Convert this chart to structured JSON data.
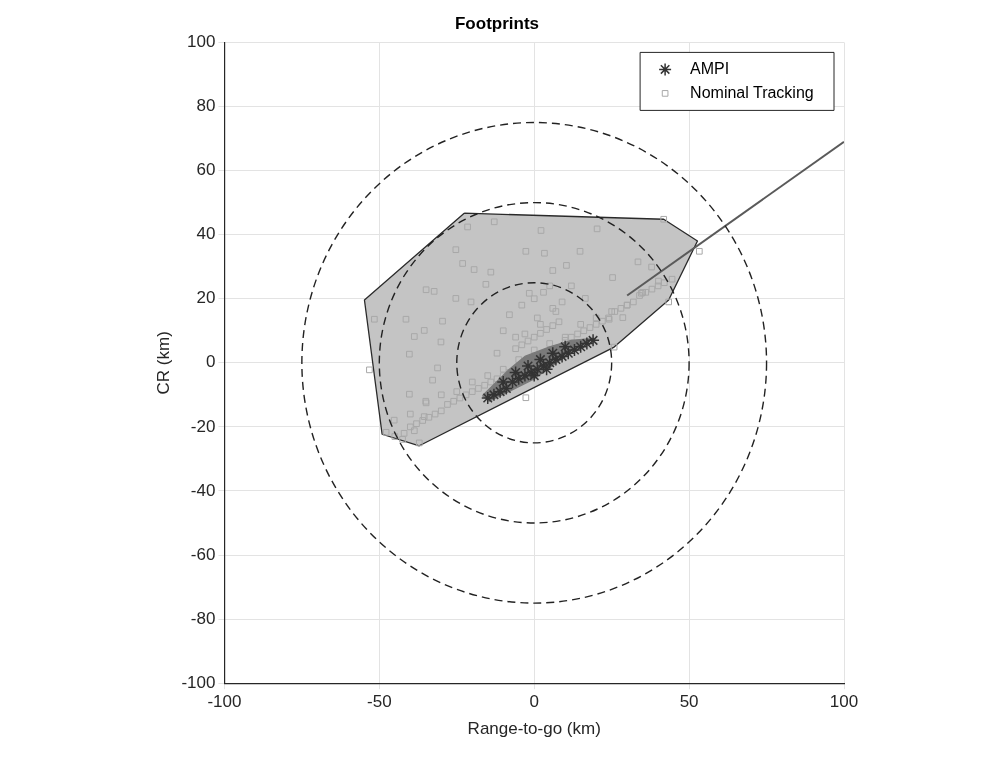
{
  "chart_data": {
    "type": "scatter",
    "title": "Footprints",
    "xlabel": "Range-to-go (km)",
    "ylabel": "CR (km)",
    "xlim": [
      -100,
      100
    ],
    "xticks": [
      -100,
      -50,
      0,
      50,
      100
    ],
    "ylim": [
      -100,
      100
    ],
    "yticks": [
      -100,
      -80,
      -60,
      -40,
      -20,
      0,
      20,
      40,
      60,
      80,
      100
    ],
    "grid": true,
    "legend": "top right",
    "series": [
      {
        "type": "area",
        "color": "#c4c4c4",
        "x": [
          -22.6,
          41.8,
          52.7,
          43.4,
          25.8,
          -37.1,
          -49.1,
          -54.8,
          -22.6
        ],
        "values": [
          46.7,
          44.8,
          38,
          19.6,
          4.9,
          -25.9,
          -22.3,
          19.6,
          46.7
        ]
      },
      {
        "type": "line",
        "line_style": "solid",
        "color": "#5a5a5a",
        "x": [
          30,
          100
        ],
        "values": [
          21,
          69
        ]
      },
      {
        "name": "Nominal Tracking",
        "type": "scatter",
        "marker": "square",
        "color": "#a8a8a8",
        "x": [
          -21.5,
          -12.9,
          -25.3,
          -23.1,
          -19.4,
          -14,
          -15.6,
          -34.9,
          -32.3,
          -25.3,
          -20.4,
          -51.6,
          -41.4,
          -29.6,
          -35.5,
          -38.7,
          -30.1,
          -40.3,
          -53.2,
          -31.2,
          -32.8,
          -40.3,
          -34.9,
          -45.2,
          -35.5,
          -47.8,
          -38.7,
          -37.1,
          -42.5,
          2.2,
          20.3,
          41.8,
          53.3,
          -2.7,
          3.3,
          14.8,
          6,
          10.4,
          25.3,
          33.5,
          37.9,
          40.1,
          44.5,
          34.6,
          43.4,
          28.6,
          24.2,
          25.8,
          16.5,
          -1.6,
          -2.7,
          -45,
          -42,
          -40,
          -38,
          -36,
          -34,
          -32,
          -30,
          -28,
          -26,
          -24,
          -22,
          -20,
          -18,
          -16,
          -14,
          -12,
          -10,
          -8,
          -6,
          -4,
          -2,
          0,
          2,
          4,
          6,
          8,
          10,
          12,
          14,
          16,
          18,
          20,
          22,
          24,
          26,
          28,
          30,
          32,
          34,
          36,
          38,
          40,
          42,
          -40,
          -35,
          -30,
          -25,
          -20,
          -15,
          -10,
          -5,
          0,
          5,
          10,
          15,
          20,
          25,
          30,
          35,
          -8,
          -4,
          0,
          3,
          6,
          9,
          -10,
          -6,
          2,
          7,
          12,
          -12,
          -3,
          1,
          5
        ],
        "values": [
          42.4,
          44,
          35.3,
          31,
          29.1,
          28.3,
          24.5,
          22.8,
          22.3,
          20.1,
          19,
          13.6,
          13.6,
          13,
          10.1,
          8.2,
          6.5,
          2.7,
          -2.2,
          -1.6,
          -5.4,
          -9.8,
          -12.5,
          -17.9,
          -16.8,
          -21.7,
          -21.2,
          -25,
          -23.9,
          41.3,
          41.8,
          44.8,
          34.8,
          34.8,
          34.2,
          34.8,
          28.8,
          30.4,
          26.6,
          31.5,
          29.9,
          25.5,
          26.1,
          21.7,
          19,
          14.1,
          13.6,
          4.9,
          20.1,
          21.7,
          -10.9,
          -23,
          -22,
          -20,
          -19,
          -18,
          -17,
          -16,
          -15,
          -13,
          -12,
          -11,
          -10,
          -9,
          -8,
          -7,
          -6,
          -5,
          -4,
          -3,
          4.4,
          5.6,
          6.8,
          8,
          9.2,
          10.4,
          11.6,
          12.8,
          7,
          8,
          9,
          10,
          11,
          12,
          13,
          14,
          16,
          17,
          18,
          19,
          21,
          22,
          23,
          24,
          25,
          -16,
          -12,
          -10,
          -9,
          -6,
          -4,
          -2,
          1,
          4,
          6,
          8,
          12,
          14,
          16,
          18,
          22,
          15,
          18,
          20,
          22,
          17,
          19,
          10,
          8,
          12,
          16,
          24,
          3,
          9,
          14,
          24
        ]
      },
      {
        "type": "area",
        "color": "#7a7a7a",
        "x": [
          -16.7,
          -8,
          -3,
          5,
          12,
          19.2,
          10,
          0,
          -14.5,
          -16.7
        ],
        "values": [
          -10.3,
          -2,
          2,
          5,
          7,
          7.6,
          2,
          -5,
          -12,
          -10.3
        ]
      },
      {
        "name": "AMPI",
        "type": "scatter",
        "marker": "cross",
        "color": "#333333",
        "x": [
          -15,
          -13,
          -11,
          -9,
          -7,
          -5,
          -3,
          -1,
          1,
          3,
          5,
          7,
          9,
          11,
          13,
          15,
          17,
          19,
          -10,
          -6,
          -2,
          2,
          6,
          10,
          0,
          4
        ],
        "values": [
          -11,
          -10,
          -9,
          -8,
          -6,
          -5,
          -4,
          -3,
          -2,
          -1,
          0,
          1,
          2,
          3,
          4,
          5,
          6,
          7,
          -6,
          -3,
          -1,
          1,
          3,
          5,
          -4,
          -2
        ]
      }
    ]
  }
}
